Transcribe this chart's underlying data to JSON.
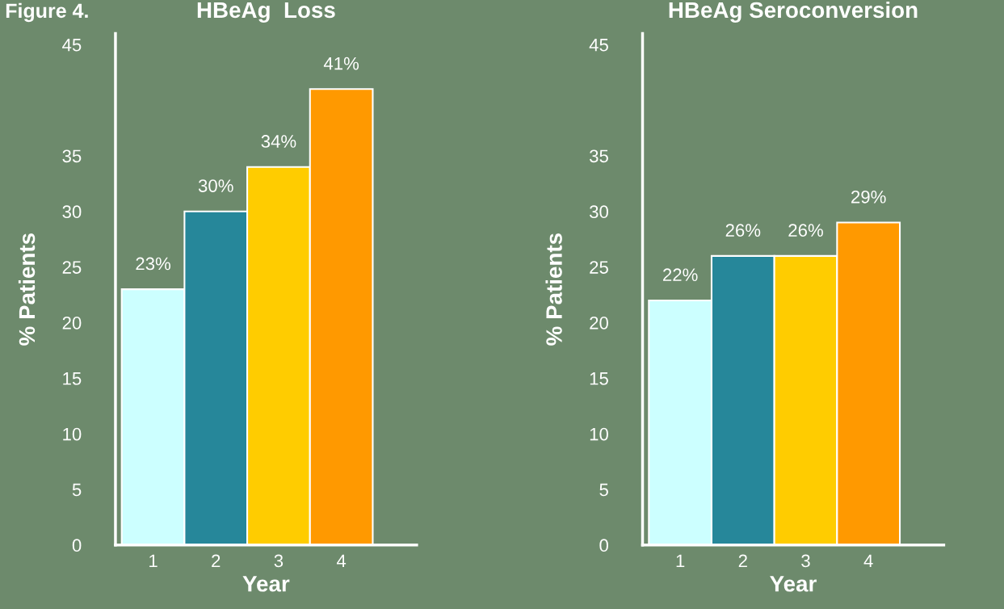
{
  "chart_data": [
    {
      "type": "bar",
      "title": "HBeAg  Loss",
      "xlabel": "Year",
      "ylabel": "% Patients",
      "categories": [
        "1",
        "2",
        "3",
        "4"
      ],
      "values": [
        23,
        30,
        34,
        41
      ],
      "colors": [
        "#ccffff",
        "#26879a",
        "#ffcc00",
        "#ff9900"
      ],
      "ylim": [
        0,
        46
      ],
      "yticks": [
        0,
        5,
        10,
        15,
        20,
        25,
        30,
        35,
        45
      ],
      "data_labels": true,
      "value_labels": [
        "23%",
        "30%",
        "34%",
        "41%"
      ],
      "annotations": [
        "Figure 4."
      ]
    },
    {
      "type": "bar",
      "title": "HBeAg Seroconversion",
      "xlabel": "Year",
      "ylabel": "% Patients",
      "categories": [
        "1",
        "2",
        "3",
        "4"
      ],
      "values": [
        22,
        26,
        26,
        29
      ],
      "colors": [
        "#ccffff",
        "#26879a",
        "#ffcc00",
        "#ff9900"
      ],
      "ylim": [
        0,
        46
      ],
      "yticks": [
        0,
        5,
        10,
        15,
        20,
        25,
        30,
        35,
        45
      ],
      "data_labels": true,
      "value_labels": [
        "22%",
        "26%",
        "26%",
        "29%"
      ]
    }
  ]
}
